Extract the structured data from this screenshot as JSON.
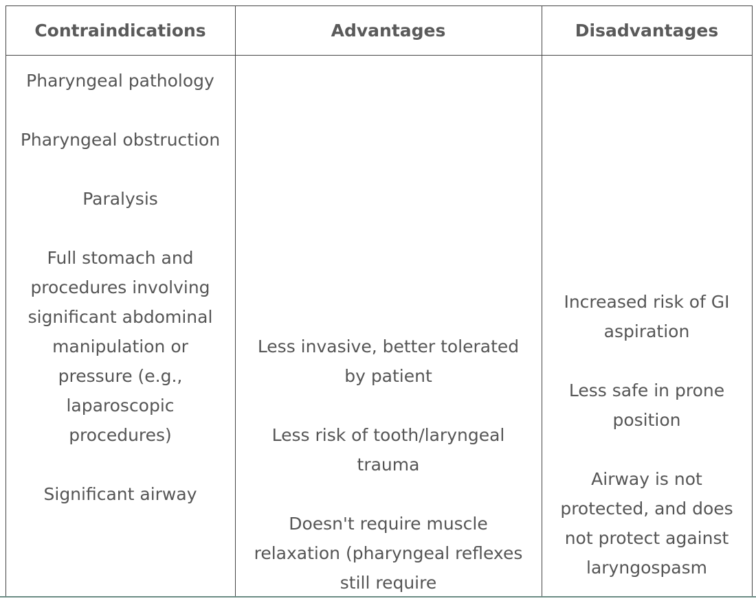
{
  "table": {
    "header": [
      "Contraindications",
      "Advantages",
      "Disadvantages"
    ],
    "columns": [
      [
        "Pharyngeal pathology",
        "Pharyngeal obstruction",
        "Paralysis",
        "Full stomach and procedures involving significant abdominal manipulation or pressure (e.g., laparoscopic procedures)",
        "Significant airway"
      ],
      [
        "Less invasive, better tolerated by patient",
        "Less risk of tooth/laryngeal trauma",
        "Doesn't require muscle relaxation (pharyngeal reflexes still require"
      ],
      [
        "Increased risk of GI aspiration",
        "Less safe in prone position",
        "Airway is not protected, and does not protect against laryngospasm"
      ]
    ]
  }
}
